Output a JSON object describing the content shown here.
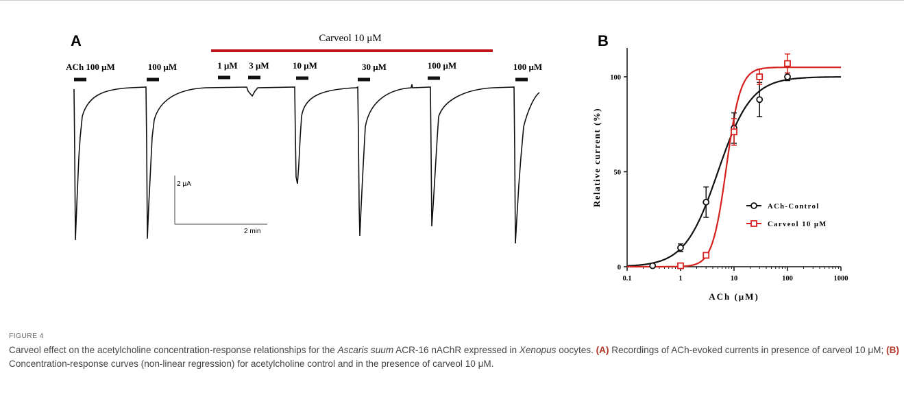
{
  "panel_a": {
    "letter": "A",
    "treatment_label": "Carveol 10 μM",
    "treatment_color": "#c0141a",
    "application_labels": [
      "ACh 100 μM",
      "100 μM",
      "1 μM",
      "3 μM",
      "10 μM",
      "30 μM",
      "100 μM",
      "100 μM"
    ],
    "scale_current": "2 μA",
    "scale_time": "2 min"
  },
  "panel_b": {
    "letter": "B"
  },
  "chart_data": {
    "type": "scatter",
    "xscale": "log",
    "xlabel": "ACh (μM)",
    "ylabel": "Relative current (%)",
    "xlim": [
      0.1,
      1000
    ],
    "ylim": [
      0,
      110
    ],
    "xticks": [
      "0.1",
      "1",
      "10",
      "100",
      "1000"
    ],
    "yticks": [
      "0",
      "50",
      "100"
    ],
    "legend_position": "center-right",
    "series": [
      {
        "name": "ACh-Control",
        "color": "#111111",
        "marker": "circle",
        "x": [
          0.3,
          1,
          3,
          10,
          30,
          100
        ],
        "y": [
          0.5,
          10,
          34,
          73,
          88,
          100
        ],
        "err": [
          0,
          2,
          8,
          8,
          9,
          2
        ],
        "fit": {
          "bottom": 0,
          "top": 100,
          "ec50": 5.0,
          "hill": 1.4
        }
      },
      {
        "name": "Carveol 10 μM",
        "color": "#d62020",
        "marker": "square",
        "x": [
          1,
          3,
          10,
          30,
          100
        ],
        "y": [
          0.5,
          6,
          71,
          100,
          107
        ],
        "err": [
          0,
          1,
          7,
          4,
          5
        ],
        "fit": {
          "bottom": 0,
          "top": 105,
          "ec50": 7.2,
          "hill": 3.3
        }
      }
    ]
  },
  "caption": {
    "label": "FIGURE 4",
    "line1_a": "Carveol effect on the acetylcholine concentration-response relationships for the ",
    "species": "Ascaris suum",
    "line1_b": " ACR-16 nAChR expressed in ",
    "host": "Xenopus",
    "line1_c": " oocytes. ",
    "ref_a": "(A)",
    "line2_a": " Recordings of ACh-evoked currents in presence of carveol 10 μM; ",
    "ref_b": "(B)",
    "line2_b": " Concentration-response curves (non-linear regression) for acetylcholine control and in the presence of carveol 10 μM."
  }
}
